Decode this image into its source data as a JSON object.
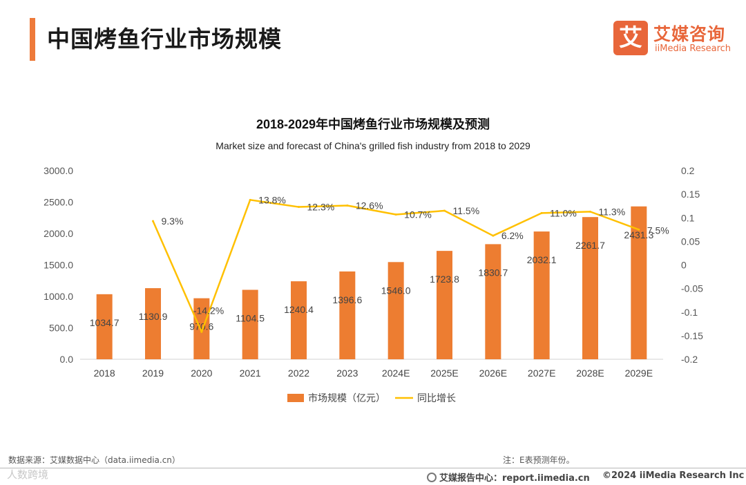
{
  "header": {
    "title": "中国烤鱼行业市场规模",
    "logo": {
      "mark": "艾",
      "cn": "艾媒咨询",
      "en": "iiMedia Research"
    },
    "accent_color": "#ee7a3a"
  },
  "chart_data": {
    "type": "bar",
    "title": "2018-2029年中国烤鱼行业市场规模及预测",
    "subtitle": "Market size and forecast of China's grilled fish industry from 2018 to 2029",
    "categories": [
      "2018",
      "2019",
      "2020",
      "2021",
      "2022",
      "2023",
      "2024E",
      "2025E",
      "2026E",
      "2027E",
      "2028E",
      "2029E"
    ],
    "series": [
      {
        "name": "市场规模（亿元）",
        "type": "bar",
        "axis": "left",
        "color": "#ed7d31",
        "values": [
          1034.7,
          1130.9,
          970.6,
          1104.5,
          1240.4,
          1396.6,
          1546.0,
          1723.8,
          1830.7,
          2032.1,
          2261.7,
          2431.3
        ],
        "labels": [
          "1034.7",
          "1130.9",
          "970.6",
          "1104.5",
          "1240.4",
          "1396.6",
          "1546.0",
          "1723.8",
          "1830.7",
          "2032.1",
          "2261.7",
          "2431.3"
        ]
      },
      {
        "name": "同比增长",
        "type": "line",
        "axis": "right",
        "color": "#ffc000",
        "values": [
          null,
          0.093,
          -0.142,
          0.138,
          0.123,
          0.126,
          0.107,
          0.115,
          0.062,
          0.11,
          0.113,
          0.075
        ],
        "labels": [
          "",
          "9.3%",
          "-14.2%",
          "13.8%",
          "12.3%",
          "12.6%",
          "10.7%",
          "11.5%",
          "6.2%",
          "11.0%",
          "11.3%",
          "7.5%"
        ]
      }
    ],
    "ylim_left": [
      0,
      3000
    ],
    "yticks_left": [
      "0.0",
      "500.0",
      "1000.0",
      "1500.0",
      "2000.0",
      "2500.0",
      "3000.0"
    ],
    "ylim_right": [
      -0.2,
      0.2
    ],
    "yticks_right": [
      "-0.2",
      "-0.15",
      "-0.1",
      "-0.05",
      "0",
      "0.05",
      "0.1",
      "0.15",
      "0.2"
    ],
    "grid": false,
    "legend_position": "bottom"
  },
  "footer": {
    "source": "数据来源：艾媒数据中心（data.iimedia.cn）",
    "note": "注：E表预测年份。",
    "report_site": "艾媒报告中心：report.iimedia.cn",
    "copyright": "©2024  iiMedia Research  Inc",
    "watermark": "人数跨境"
  }
}
